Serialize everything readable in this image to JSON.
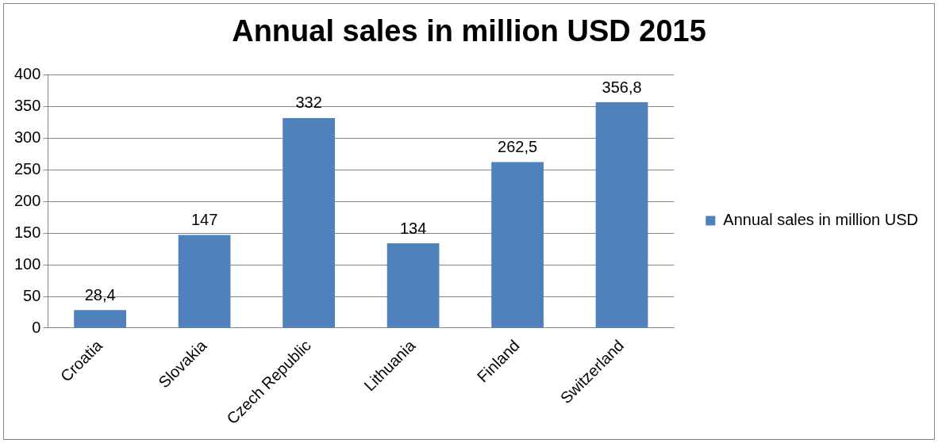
{
  "chart_data": {
    "type": "bar",
    "title": "Annual sales in million USD 2015",
    "categories": [
      "Croatia",
      "Slovakia",
      "Czech Republic",
      "Lithuania",
      "Finland",
      "Switzerland"
    ],
    "series": [
      {
        "name": "Annual sales in million USD",
        "color": "#4f81bd",
        "values": [
          28.4,
          147,
          332,
          134,
          262.5,
          356.8
        ],
        "value_labels": [
          "28,4",
          "147",
          "332",
          "134",
          "262,5",
          "356,8"
        ]
      }
    ],
    "ylim": [
      0,
      400
    ],
    "yticks": [
      0,
      50,
      100,
      150,
      200,
      250,
      300,
      350,
      400
    ],
    "grid": "y",
    "legend": "right"
  }
}
